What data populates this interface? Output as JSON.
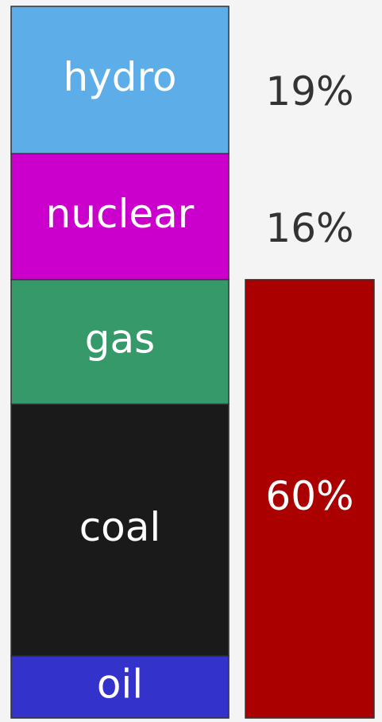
{
  "chart_data": {
    "type": "stacked-bar",
    "series": [
      {
        "name": "hydro",
        "color": "#5dade8",
        "values": [
          20.7
        ]
      },
      {
        "name": "nuclear",
        "color": "#cc00cc",
        "values": [
          17.7
        ]
      },
      {
        "name": "gas",
        "color": "#36996a",
        "values": [
          17.5
        ]
      },
      {
        "name": "coal",
        "color": "#1a1a1a",
        "values": [
          35.4
        ]
      },
      {
        "name": "oil",
        "color": "#3333cc",
        "values": [
          8.7
        ]
      }
    ],
    "ylim": [
      0,
      100
    ],
    "shares": {
      "values": [
        19,
        16,
        60
      ],
      "value_labels": [
        "19%",
        "16%",
        "60%"
      ],
      "color": "#aa0000"
    }
  }
}
